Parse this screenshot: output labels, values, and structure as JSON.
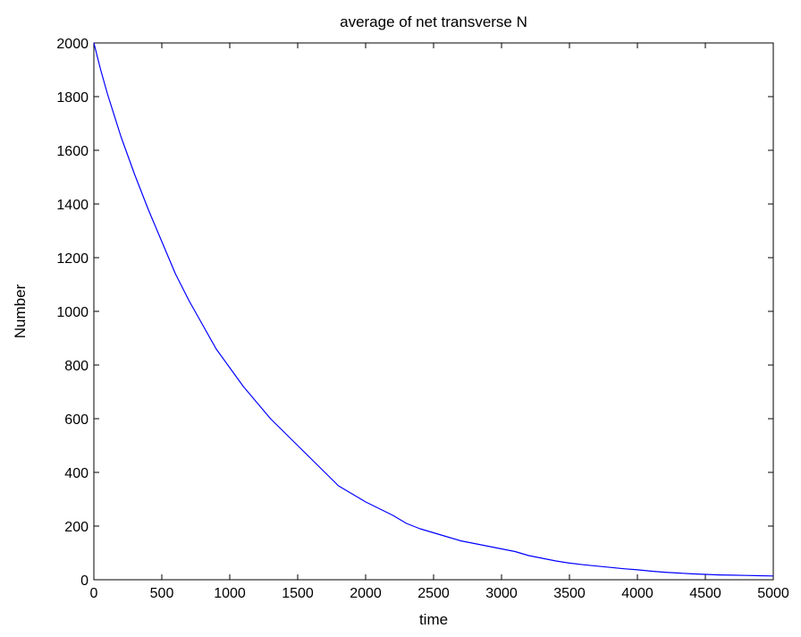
{
  "chart_data": {
    "type": "line",
    "title": "average of net transverse N",
    "xlabel": "time",
    "ylabel": "Number",
    "xlim": [
      0,
      5000
    ],
    "ylim": [
      0,
      2000
    ],
    "xticks": [
      0,
      500,
      1000,
      1500,
      2000,
      2500,
      3000,
      3500,
      4000,
      4500,
      5000
    ],
    "yticks": [
      0,
      200,
      400,
      600,
      800,
      1000,
      1200,
      1400,
      1600,
      1800,
      2000
    ],
    "grid": false,
    "series": [
      {
        "color": "#0000ff",
        "x": [
          0,
          50,
          100,
          200,
          300,
          400,
          500,
          600,
          700,
          800,
          900,
          1000,
          1100,
          1200,
          1300,
          1400,
          1500,
          1600,
          1700,
          1800,
          1900,
          2000,
          2100,
          2200,
          2300,
          2400,
          2500,
          2600,
          2700,
          2800,
          2900,
          3000,
          3100,
          3200,
          3300,
          3400,
          3500,
          3600,
          3700,
          3800,
          3900,
          4000,
          4100,
          4200,
          4300,
          4400,
          4500,
          4600,
          4700,
          4800,
          4900,
          5000
        ],
        "y": [
          2000,
          1900,
          1810,
          1650,
          1510,
          1380,
          1260,
          1140,
          1040,
          950,
          860,
          790,
          720,
          660,
          600,
          550,
          500,
          450,
          400,
          350,
          320,
          290,
          265,
          240,
          210,
          190,
          175,
          160,
          145,
          135,
          125,
          115,
          105,
          90,
          80,
          70,
          62,
          56,
          51,
          46,
          41,
          37,
          32,
          28,
          25,
          22,
          20,
          18,
          17,
          16,
          15,
          14
        ]
      }
    ]
  }
}
